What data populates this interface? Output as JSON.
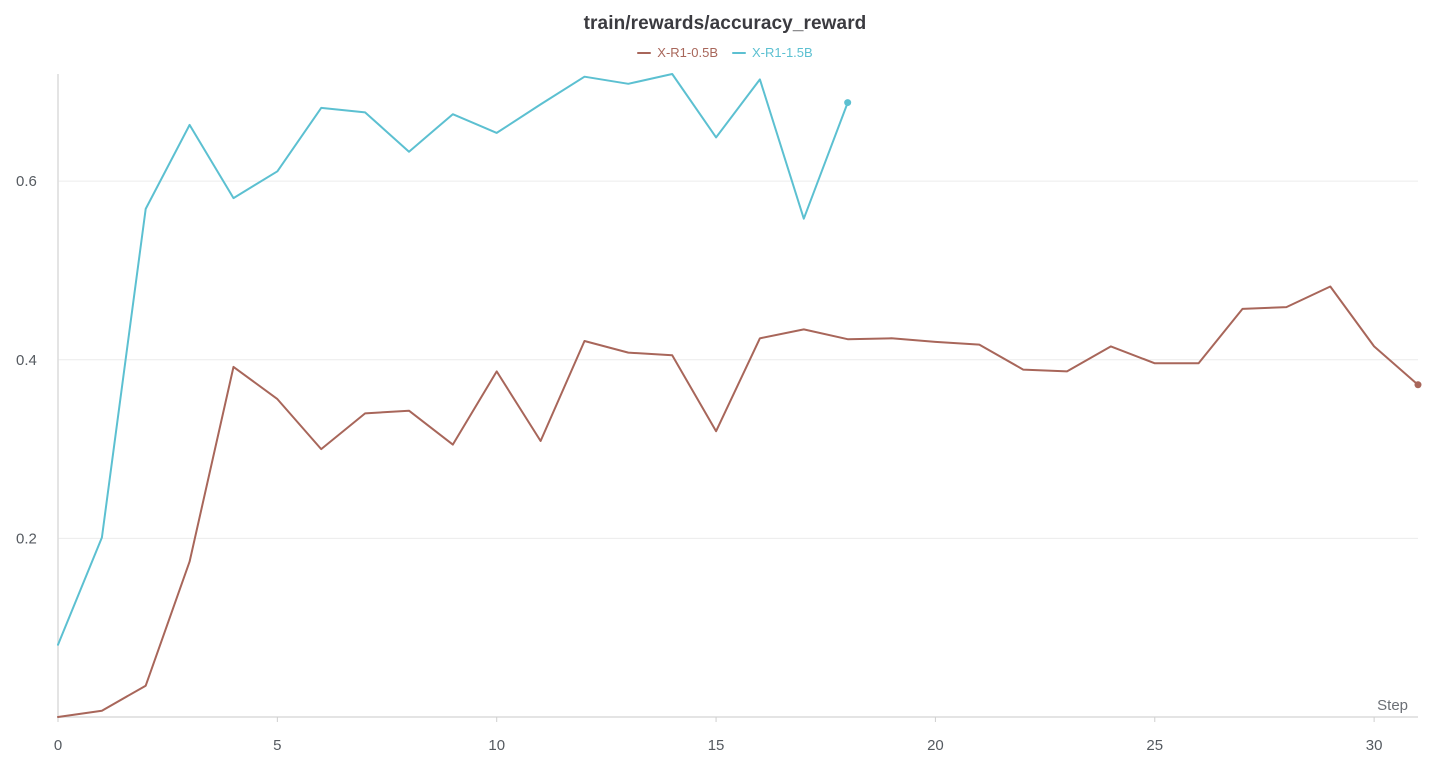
{
  "chart_data": {
    "type": "line",
    "title": "train/rewards/accuracy_reward",
    "xlabel": "Step",
    "ylabel": "",
    "xlim": [
      0,
      31
    ],
    "ylim": [
      0.0,
      0.72
    ],
    "xticks": [
      0,
      5,
      10,
      15,
      20,
      25,
      30
    ],
    "yticks": [
      0.2,
      0.4,
      0.6
    ],
    "ytick_labels": [
      "0.2",
      "0.4",
      "0.6"
    ],
    "grid": "horizontal",
    "legend_position": "top-center",
    "series": [
      {
        "name": "X-R1-0.5B",
        "color": "#a8665a",
        "x": [
          0,
          1,
          2,
          3,
          4,
          5,
          6,
          7,
          8,
          9,
          10,
          11,
          12,
          13,
          14,
          15,
          16,
          17,
          18,
          19,
          20,
          21,
          22,
          23,
          24,
          25,
          26,
          27,
          28,
          29,
          30,
          31
        ],
        "values": [
          0.0,
          0.007,
          0.035,
          0.174,
          0.392,
          0.356,
          0.3,
          0.34,
          0.343,
          0.305,
          0.387,
          0.309,
          0.421,
          0.408,
          0.405,
          0.32,
          0.424,
          0.434,
          0.423,
          0.424,
          0.42,
          0.417,
          0.389,
          0.387,
          0.415,
          0.396,
          0.396,
          0.457,
          0.459,
          0.482,
          0.415,
          0.372
        ]
      },
      {
        "name": "X-R1-1.5B",
        "color": "#5cc0d1",
        "x": [
          0,
          1,
          2,
          3,
          4,
          5,
          6,
          7,
          8,
          9,
          10,
          11,
          12,
          13,
          14,
          15,
          16,
          17,
          18
        ],
        "values": [
          0.081,
          0.201,
          0.569,
          0.663,
          0.581,
          0.611,
          0.682,
          0.677,
          0.633,
          0.675,
          0.654,
          0.686,
          0.717,
          0.709,
          0.72,
          0.649,
          0.714,
          0.558,
          0.688
        ]
      }
    ]
  }
}
